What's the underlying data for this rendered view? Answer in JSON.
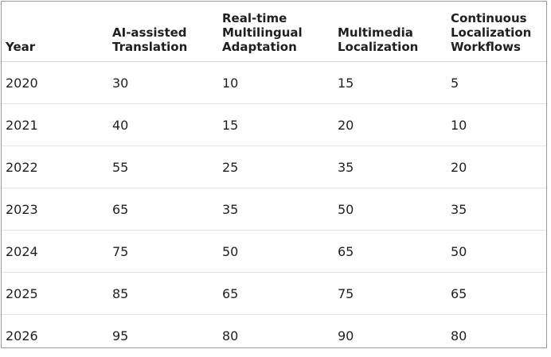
{
  "chart_data": {
    "type": "table",
    "columns": [
      [
        "Year"
      ],
      [
        "AI-assisted",
        "Translation"
      ],
      [
        "Real-time",
        "Multilingual",
        "Adaptation"
      ],
      [
        "Multimedia",
        "Localization"
      ],
      [
        "Continuous",
        "Localization",
        "Workflows"
      ]
    ],
    "rows": [
      [
        "2020",
        "30",
        "10",
        "15",
        "5"
      ],
      [
        "2021",
        "40",
        "15",
        "20",
        "10"
      ],
      [
        "2022",
        "55",
        "25",
        "35",
        "20"
      ],
      [
        "2023",
        "65",
        "35",
        "50",
        "35"
      ],
      [
        "2024",
        "75",
        "50",
        "65",
        "50"
      ],
      [
        "2025",
        "85",
        "65",
        "75",
        "65"
      ],
      [
        "2026",
        "95",
        "80",
        "90",
        "80"
      ]
    ]
  }
}
